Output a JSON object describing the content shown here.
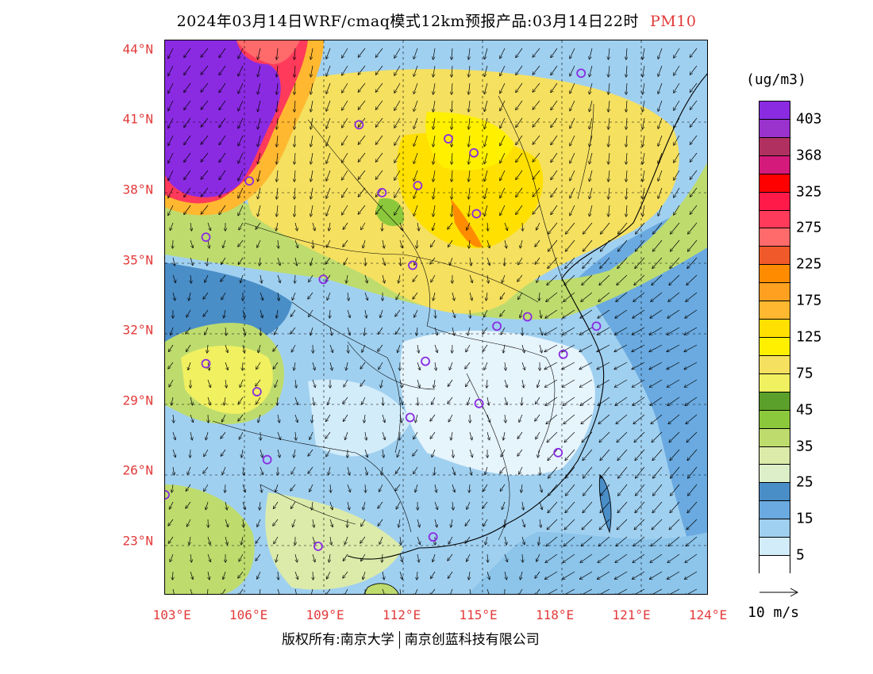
{
  "title": {
    "main": "2024年03月14日WRF/cmaq模式12km预报产品:03月14日22时",
    "pollutant": "PM10"
  },
  "map": {
    "lat_labels": [
      "44°N",
      "41°N",
      "38°N",
      "35°N",
      "32°N",
      "29°N",
      "26°N",
      "23°N"
    ],
    "lat_values": [
      44,
      41,
      38,
      35,
      32,
      29,
      26,
      23
    ],
    "lon_labels": [
      "103°E",
      "106°E",
      "109°E",
      "112°E",
      "115°E",
      "118°E",
      "121°E",
      "124°E"
    ],
    "lon_values": [
      103,
      106,
      109,
      112,
      115,
      118,
      121,
      124
    ],
    "lat_range": [
      20.7,
      44.4
    ],
    "lon_range": [
      102.7,
      124
    ],
    "station_marker_color": "#8a2be2",
    "stations": [
      {
        "lon": 119.0,
        "lat": 43.0
      },
      {
        "lon": 110.3,
        "lat": 40.8
      },
      {
        "lon": 113.8,
        "lat": 40.2
      },
      {
        "lon": 114.8,
        "lat": 39.6
      },
      {
        "lon": 106.0,
        "lat": 38.4
      },
      {
        "lon": 111.2,
        "lat": 37.9
      },
      {
        "lon": 112.6,
        "lat": 38.2
      },
      {
        "lon": 114.9,
        "lat": 37.0
      },
      {
        "lon": 104.3,
        "lat": 36.0
      },
      {
        "lon": 112.4,
        "lat": 34.8
      },
      {
        "lon": 108.9,
        "lat": 34.2
      },
      {
        "lon": 115.7,
        "lat": 32.2
      },
      {
        "lon": 116.9,
        "lat": 32.6
      },
      {
        "lon": 119.6,
        "lat": 32.2
      },
      {
        "lon": 118.3,
        "lat": 31.0
      },
      {
        "lon": 104.3,
        "lat": 30.6
      },
      {
        "lon": 112.9,
        "lat": 30.7
      },
      {
        "lon": 106.3,
        "lat": 29.4
      },
      {
        "lon": 115.0,
        "lat": 28.9
      },
      {
        "lon": 112.3,
        "lat": 28.3
      },
      {
        "lon": 106.7,
        "lat": 26.5
      },
      {
        "lon": 118.1,
        "lat": 26.8
      },
      {
        "lon": 102.7,
        "lat": 25.0
      },
      {
        "lon": 113.2,
        "lat": 23.2
      },
      {
        "lon": 108.7,
        "lat": 22.8
      }
    ]
  },
  "legend": {
    "units": "(ug/m3)",
    "colors": [
      "#8a2be2",
      "#9a32cd",
      "#b03060",
      "#d41a7a",
      "#ff0000",
      "#ff1a4a",
      "#ff3a5a",
      "#ff6a6a",
      "#f05a2a",
      "#ff8c00",
      "#ffa020",
      "#ffb830",
      "#ffe000",
      "#fff000",
      "#f5e060",
      "#f0f060",
      "#5aa02a",
      "#8cc83c",
      "#bedc6e",
      "#dcebaa",
      "#dcefc8",
      "#4a8ec8",
      "#6aaae0",
      "#a0d0f0",
      "#d2ecfa",
      "#ffffff"
    ],
    "labels": [
      "403",
      "368",
      "325",
      "275",
      "225",
      "175",
      "125",
      "75",
      "45",
      "35",
      "25",
      "15",
      "5"
    ],
    "wind_ref": "10 m/s"
  },
  "copyright": {
    "left": "版权所有:南京大学",
    "right": "南京创蓝科技有限公司"
  }
}
